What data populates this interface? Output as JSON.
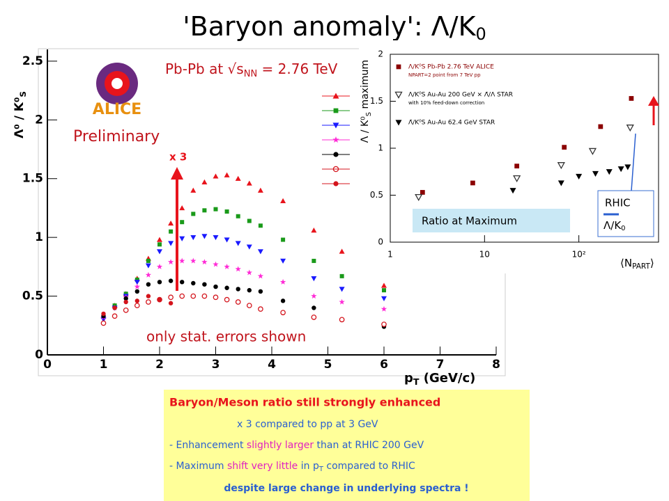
{
  "slide": {
    "title": "'Baryon anomaly': Λ/K",
    "title_sub": "0",
    "box": {
      "heading": "Baryon/Meson ratio still strongly enhanced",
      "line1": "x 3 compared to pp at 3 GeV",
      "line2": [
        "- Enhancement ",
        "slightly larger",
        " than at RHIC 200 GeV"
      ],
      "line3": [
        "- Maximum ",
        "shift very little",
        " in p",
        "T",
        " compared to RHIC"
      ],
      "line4": "despite large change in underlying spectra !"
    }
  },
  "chart_data": [
    {
      "type": "scatter",
      "ylabel": [
        "Λ⁰ / K⁰",
        "S"
      ],
      "xlabel": [
        "p",
        "T",
        " (GeV/c)"
      ],
      "annotations": {
        "system": [
          "Pb-Pb at √s",
          "NN",
          " = 2.76 TeV"
        ],
        "preliminary": "Preliminary",
        "errors": "only stat. errors shown",
        "factor": "x 3",
        "experiment": "ALICE"
      },
      "xlim": [
        0,
        8
      ],
      "ylim": [
        0,
        2.6
      ],
      "xticks": [
        0,
        1,
        2,
        3,
        4,
        5,
        6,
        7,
        8
      ],
      "yticks": [
        0,
        0.5,
        1,
        1.5,
        2,
        2.5
      ],
      "x": [
        1.0,
        1.2,
        1.4,
        1.6,
        1.8,
        2.0,
        2.2,
        2.4,
        2.6,
        2.8,
        3.0,
        3.2,
        3.4,
        3.6,
        3.8,
        4.2,
        4.75,
        5.25,
        6.0
      ],
      "series": [
        {
          "color": "#e8141c",
          "marker": "triangle-up",
          "values": [
            0.33,
            0.42,
            0.52,
            0.65,
            0.82,
            0.98,
            1.12,
            1.25,
            1.4,
            1.47,
            1.52,
            1.53,
            1.5,
            1.46,
            1.4,
            1.31,
            1.06,
            0.88,
            0.59
          ]
        },
        {
          "color": "#1a9a1a",
          "marker": "square",
          "values": [
            0.33,
            0.42,
            0.52,
            0.64,
            0.8,
            0.94,
            1.05,
            1.13,
            1.2,
            1.23,
            1.24,
            1.22,
            1.18,
            1.14,
            1.1,
            0.98,
            0.8,
            0.67,
            0.55
          ]
        },
        {
          "color": "#1a1aff",
          "marker": "triangle-down",
          "values": [
            0.3,
            0.4,
            0.5,
            0.62,
            0.76,
            0.88,
            0.95,
            0.99,
            1.0,
            1.01,
            1.0,
            0.98,
            0.95,
            0.92,
            0.88,
            0.8,
            0.65,
            0.56,
            0.48
          ]
        },
        {
          "color": "#ff2bd6",
          "marker": "star",
          "values": [
            0.32,
            0.4,
            0.49,
            0.58,
            0.68,
            0.75,
            0.79,
            0.8,
            0.8,
            0.79,
            0.77,
            0.75,
            0.73,
            0.7,
            0.67,
            0.62,
            0.5,
            0.45,
            0.39
          ]
        },
        {
          "color": "#000000",
          "marker": "circle",
          "values": [
            0.33,
            0.4,
            0.48,
            0.54,
            0.6,
            0.62,
            0.63,
            0.62,
            0.61,
            0.6,
            0.58,
            0.57,
            0.56,
            0.55,
            0.54,
            0.46,
            0.4,
            0.3,
            0.24
          ]
        },
        {
          "color": "#d4141c",
          "marker": "circle-open",
          "values": [
            0.27,
            0.33,
            0.38,
            0.42,
            0.45,
            0.47,
            0.49,
            0.5,
            0.5,
            0.5,
            0.49,
            0.47,
            0.45,
            0.42,
            0.39,
            0.36,
            0.32,
            0.3,
            0.26
          ]
        },
        {
          "color": "#d4141c",
          "marker": "circle",
          "values": [
            0.35,
            0.4,
            0.45,
            0.46,
            0.5,
            0.47,
            0.44,
            null,
            null,
            null,
            null,
            null,
            null,
            null,
            null,
            null,
            null,
            null,
            null
          ]
        }
      ]
    },
    {
      "type": "scatter",
      "log_x": true,
      "ylabel": [
        "Λ / K⁰",
        "S",
        " maximum"
      ],
      "xlabel": [
        "⟨N",
        "PART",
        "⟩"
      ],
      "xlim": [
        1,
        700
      ],
      "ylim": [
        0,
        2
      ],
      "xticks": [
        1,
        10,
        {
          "value": 100,
          "label": "10²"
        }
      ],
      "yticks": [
        0,
        0.5,
        1,
        1.5,
        2
      ],
      "annotations": {
        "ratio": "Ratio at Maximum",
        "rhic": "RHIC",
        "rhic_ratio": "Λ/K",
        "rhic_sub": "0"
      },
      "series": [
        {
          "name": "Λ/K⁰S Pb-Pb 2.76 TeV ALICE",
          "note": "NPART=2 point from 7 TeV pp",
          "color": "#8b0000",
          "marker": "square",
          "x": [
            2.2,
            7.5,
            22,
            70,
            170,
            360
          ],
          "values": [
            0.53,
            0.63,
            0.81,
            1.01,
            1.23,
            1.53
          ]
        },
        {
          "name": "Λ/K⁰S Au-Au 200 GeV × Λ̄/Λ STAR",
          "note": "with 10% feed-down correction",
          "color": "#333333",
          "marker": "triangle-down-open",
          "x": [
            2,
            22,
            65,
            140,
            350
          ],
          "values": [
            0.48,
            0.68,
            0.82,
            0.97,
            1.22
          ]
        },
        {
          "name": "Λ̄/K⁰S Au-Au 62.4 GeV STAR",
          "color": "#000000",
          "marker": "triangle-down",
          "x": [
            20,
            65,
            100,
            150,
            210,
            280,
            330
          ],
          "values": [
            0.55,
            0.63,
            0.7,
            0.73,
            0.75,
            0.78,
            0.8
          ]
        }
      ]
    }
  ]
}
